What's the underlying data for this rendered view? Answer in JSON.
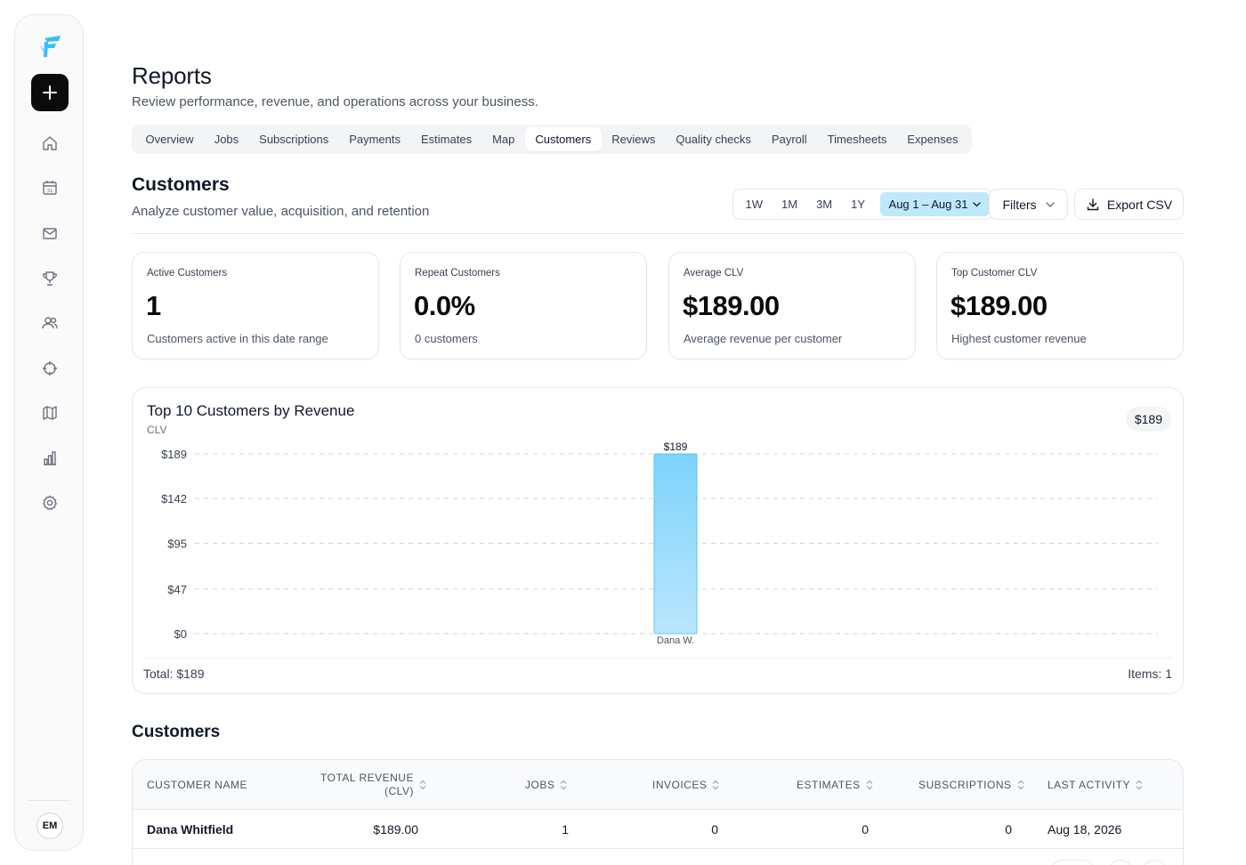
{
  "sidebar": {
    "brand": "logo-mark",
    "add_label": "+",
    "nav": [
      {
        "icon": "home-icon"
      },
      {
        "icon": "calendar-icon",
        "badge": "31"
      },
      {
        "icon": "mail-icon"
      },
      {
        "icon": "trophy-icon"
      },
      {
        "icon": "users-icon"
      },
      {
        "icon": "crosshair-icon"
      },
      {
        "icon": "map-icon"
      },
      {
        "icon": "bar-chart-icon"
      },
      {
        "icon": "settings-icon"
      }
    ],
    "avatar_initials": "EM"
  },
  "header": {
    "title": "Reports",
    "subtitle": "Review performance, revenue, and operations across your business."
  },
  "tabs": [
    {
      "label": "Overview",
      "active": false
    },
    {
      "label": "Jobs",
      "active": false
    },
    {
      "label": "Subscriptions",
      "active": false
    },
    {
      "label": "Payments",
      "active": false
    },
    {
      "label": "Estimates",
      "active": false
    },
    {
      "label": "Map",
      "active": false
    },
    {
      "label": "Customers",
      "active": true
    },
    {
      "label": "Reviews",
      "active": false
    },
    {
      "label": "Quality checks",
      "active": false
    },
    {
      "label": "Payroll",
      "active": false
    },
    {
      "label": "Timesheets",
      "active": false
    },
    {
      "label": "Expenses",
      "active": false
    }
  ],
  "section": {
    "title": "Customers",
    "subtitle": "Analyze customer value, acquisition, and retention"
  },
  "range": {
    "options": [
      "1W",
      "1M",
      "3M",
      "1Y"
    ],
    "selected": "Aug 1 – Aug 31"
  },
  "filters_label": "Filters",
  "export_label": "Export CSV",
  "metrics": [
    {
      "label": "Active Customers",
      "value": "1",
      "note": "Customers active in this date range"
    },
    {
      "label": "Repeat Customers",
      "value": "0.0%",
      "note": "0 customers"
    },
    {
      "label": "Average CLV",
      "value": "$189.00",
      "note": "Average revenue per customer"
    },
    {
      "label": "Top Customer CLV",
      "value": "$189.00",
      "note": "Highest customer revenue"
    }
  ],
  "chart_panel": {
    "title": "Top 10 Customers by Revenue",
    "subtitle": "CLV",
    "badge": "$189",
    "total": "Total: $189",
    "items": "Items: 1"
  },
  "chart_data": {
    "type": "bar",
    "title": "Top 10 Customers by Revenue",
    "subtitle": "CLV",
    "categories": [
      "Dana W."
    ],
    "values": [
      189
    ],
    "value_labels": [
      "$189"
    ],
    "ylim": [
      0,
      189
    ],
    "yticks": [
      0,
      47,
      95,
      142,
      189
    ],
    "ytick_labels": [
      "$0",
      "$47",
      "$95",
      "$142",
      "$189"
    ],
    "grid": true,
    "colors": {
      "bar_top": "#7dd3fc",
      "bar_bottom": "#bae6fd",
      "bar_stroke": "#38bdf8"
    }
  },
  "table": {
    "title": "Customers",
    "columns": [
      {
        "label": "CUSTOMER NAME",
        "sortable": false
      },
      {
        "label": "TOTAL REVENUE (CLV)",
        "line1": "TOTAL REVENUE",
        "line2": "(CLV)",
        "sortable": true
      },
      {
        "label": "JOBS",
        "sortable": true
      },
      {
        "label": "INVOICES",
        "sortable": true
      },
      {
        "label": "ESTIMATES",
        "sortable": true
      },
      {
        "label": "SUBSCRIPTIONS",
        "sortable": true
      },
      {
        "label": "LAST ACTIVITY",
        "sortable": true
      }
    ],
    "rows": [
      {
        "name": "Dana Whitfield",
        "revenue": "$189.00",
        "jobs": "1",
        "invoices": "0",
        "estimates": "0",
        "subscriptions": "0",
        "last_activity": "Aug 18, 2026"
      }
    ]
  }
}
